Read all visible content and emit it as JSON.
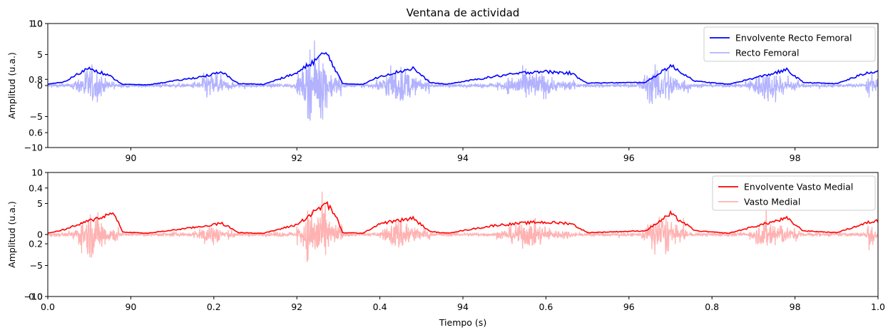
{
  "chart_data": [
    {
      "type": "line",
      "title": "Ventana de actividad",
      "xlabel": "",
      "ylabel": "Amplitud (u.a.)",
      "xlim": [
        89.0,
        99.0
      ],
      "ylim": [
        -10,
        10
      ],
      "xticks": [
        90,
        92,
        94,
        96,
        98
      ],
      "yticks": [
        -10,
        -5,
        0,
        5,
        10
      ],
      "overlay_yticks": [
        {
          "label": "1.0",
          "at": 10
        },
        {
          "label": "0.8",
          "at": 1.0
        },
        {
          "label": "0.6",
          "at": -7.6
        }
      ],
      "grid": false,
      "legend_position": "top-right",
      "colors": {
        "envelope": "#0000ff",
        "raw": "#b2b2ff"
      },
      "bursts": [
        {
          "start": 89.3,
          "end": 89.8,
          "peak": 2.9
        },
        {
          "start": 90.75,
          "end": 91.25,
          "peak": 2.1
        },
        {
          "start": 91.6,
          "end": 92.0,
          "peak": 0.4
        },
        {
          "start": 92.0,
          "end": 92.55,
          "peak": 5.3
        },
        {
          "start": 92.95,
          "end": 93.6,
          "peak": 2.8
        },
        {
          "start": 94.4,
          "end": 95.35,
          "peak": 2.3
        },
        {
          "start": 96.1,
          "end": 96.75,
          "peak": 3.2
        },
        {
          "start": 97.4,
          "end": 98.05,
          "peak": 2.5
        },
        {
          "start": 98.85,
          "end": 99.0,
          "peak": 2.3
        }
      ],
      "series": [
        {
          "name": "Envolvente Recto Femoral",
          "x": [
            89.0,
            89.2,
            89.5,
            89.75,
            89.9,
            90.2,
            90.8,
            91.1,
            91.3,
            91.6,
            92.0,
            92.35,
            92.45,
            92.55,
            92.8,
            93.0,
            93.4,
            93.6,
            93.8,
            94.4,
            94.9,
            95.3,
            95.5,
            96.2,
            96.5,
            96.8,
            97.2,
            97.6,
            97.9,
            98.1,
            98.5,
            98.9,
            99.0
          ],
          "values": [
            0.2,
            0.6,
            2.9,
            1.5,
            0.2,
            0.1,
            1.3,
            2.1,
            0.3,
            0.2,
            2.0,
            5.3,
            3.0,
            0.3,
            0.2,
            1.5,
            2.8,
            0.5,
            0.2,
            1.5,
            2.3,
            2.0,
            0.4,
            0.5,
            3.2,
            0.7,
            0.2,
            1.5,
            2.5,
            0.5,
            0.3,
            2.2,
            2.3
          ]
        },
        {
          "name": "Recto Femoral"
        }
      ]
    },
    {
      "type": "line",
      "title": "",
      "xlabel": "Tiempo (s)",
      "ylabel": "Amplitud (u.a.)",
      "xlim": [
        89.0,
        99.0
      ],
      "ylim": [
        -10,
        10
      ],
      "xticks": [
        90,
        92,
        94,
        96,
        98
      ],
      "yticks": [
        -10,
        -5,
        0,
        5,
        10
      ],
      "overlay_xticks": [
        "0.0",
        "0.2",
        "0.4",
        "0.6",
        "0.8",
        "1.0"
      ],
      "overlay_yticks": [
        {
          "label": "0.4",
          "at": 7.5
        },
        {
          "label": "0.2",
          "at": -1.5
        },
        {
          "label": "0.0",
          "at": -10
        }
      ],
      "grid": false,
      "legend_position": "top-right",
      "colors": {
        "envelope": "#ff0000",
        "raw": "#ffb2b2"
      },
      "bursts": [
        {
          "start": 89.3,
          "end": 89.85,
          "peak": 3.5
        },
        {
          "start": 90.75,
          "end": 91.25,
          "peak": 1.8
        },
        {
          "start": 91.6,
          "end": 92.0,
          "peak": 0.4
        },
        {
          "start": 92.0,
          "end": 92.55,
          "peak": 5.0
        },
        {
          "start": 93.0,
          "end": 93.6,
          "peak": 2.6
        },
        {
          "start": 94.4,
          "end": 95.3,
          "peak": 2.0
        },
        {
          "start": 96.15,
          "end": 96.7,
          "peak": 3.3
        },
        {
          "start": 97.45,
          "end": 98.05,
          "peak": 2.6
        },
        {
          "start": 98.85,
          "end": 99.0,
          "peak": 2.2
        }
      ],
      "series": [
        {
          "name": "Envolvente Vasto Medial",
          "x": [
            89.0,
            89.2,
            89.5,
            89.8,
            89.9,
            90.2,
            90.8,
            91.1,
            91.3,
            91.6,
            92.0,
            92.35,
            92.45,
            92.55,
            92.8,
            93.0,
            93.4,
            93.6,
            93.8,
            94.4,
            94.9,
            95.3,
            95.5,
            96.2,
            96.5,
            96.8,
            97.2,
            97.6,
            97.9,
            98.1,
            98.5,
            98.9,
            99.0
          ],
          "values": [
            0.2,
            0.8,
            2.2,
            3.5,
            0.4,
            0.2,
            1.2,
            1.8,
            0.3,
            0.2,
            1.6,
            5.0,
            3.5,
            0.3,
            0.2,
            1.8,
            2.6,
            0.5,
            0.2,
            1.5,
            2.0,
            1.8,
            0.3,
            0.6,
            3.3,
            0.6,
            0.2,
            1.6,
            2.6,
            0.6,
            0.3,
            2.0,
            2.2
          ]
        },
        {
          "name": "Vasto Medial"
        }
      ]
    }
  ]
}
